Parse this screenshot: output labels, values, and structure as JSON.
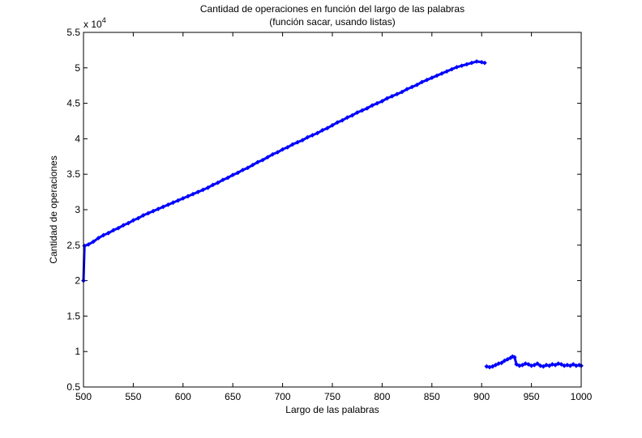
{
  "chart_data": {
    "type": "scatter",
    "title_line1": "Cantidad de operaciones en función del largo de las palabras",
    "title_line2": "(función sacar, usando listas)",
    "xlabel": "Largo de las palabras",
    "ylabel": "Cantidad de operaciones",
    "exponent_label": "x 10",
    "exponent_power": "4",
    "xlim": [
      500,
      1000
    ],
    "ylim": [
      0.5,
      5.5
    ],
    "x_ticks": [
      "500",
      "550",
      "600",
      "650",
      "700",
      "750",
      "800",
      "850",
      "900",
      "950",
      "1000"
    ],
    "y_ticks": [
      "0.5",
      "1",
      "1.5",
      "2",
      "2.5",
      "3",
      "3.5",
      "4",
      "4.5",
      "5",
      "5.5"
    ],
    "grid": false,
    "marker_color": "#0000ff",
    "series": [
      {
        "points": [
          [
            500,
            2.0
          ],
          [
            501,
            2.49
          ],
          [
            505,
            2.51
          ],
          [
            510,
            2.55
          ],
          [
            515,
            2.6
          ],
          [
            520,
            2.64
          ],
          [
            525,
            2.67
          ],
          [
            530,
            2.71
          ],
          [
            535,
            2.74
          ],
          [
            540,
            2.78
          ],
          [
            545,
            2.81
          ],
          [
            550,
            2.85
          ],
          [
            555,
            2.88
          ],
          [
            560,
            2.92
          ],
          [
            565,
            2.95
          ],
          [
            570,
            2.98
          ],
          [
            575,
            3.01
          ],
          [
            580,
            3.04
          ],
          [
            585,
            3.07
          ],
          [
            590,
            3.1
          ],
          [
            595,
            3.13
          ],
          [
            600,
            3.16
          ],
          [
            605,
            3.19
          ],
          [
            610,
            3.22
          ],
          [
            615,
            3.25
          ],
          [
            620,
            3.28
          ],
          [
            625,
            3.31
          ],
          [
            630,
            3.35
          ],
          [
            635,
            3.38
          ],
          [
            640,
            3.42
          ],
          [
            645,
            3.45
          ],
          [
            650,
            3.49
          ],
          [
            655,
            3.52
          ],
          [
            660,
            3.56
          ],
          [
            665,
            3.59
          ],
          [
            670,
            3.63
          ],
          [
            675,
            3.67
          ],
          [
            680,
            3.7
          ],
          [
            685,
            3.74
          ],
          [
            690,
            3.78
          ],
          [
            695,
            3.81
          ],
          [
            700,
            3.85
          ],
          [
            705,
            3.88
          ],
          [
            710,
            3.92
          ],
          [
            715,
            3.95
          ],
          [
            720,
            3.98
          ],
          [
            725,
            4.02
          ],
          [
            730,
            4.05
          ],
          [
            735,
            4.08
          ],
          [
            740,
            4.12
          ],
          [
            745,
            4.15
          ],
          [
            750,
            4.19
          ],
          [
            755,
            4.23
          ],
          [
            760,
            4.26
          ],
          [
            765,
            4.3
          ],
          [
            770,
            4.33
          ],
          [
            775,
            4.37
          ],
          [
            780,
            4.4
          ],
          [
            785,
            4.43
          ],
          [
            790,
            4.47
          ],
          [
            795,
            4.5
          ],
          [
            800,
            4.53
          ],
          [
            805,
            4.57
          ],
          [
            810,
            4.6
          ],
          [
            815,
            4.63
          ],
          [
            820,
            4.66
          ],
          [
            825,
            4.7
          ],
          [
            830,
            4.73
          ],
          [
            835,
            4.76
          ],
          [
            840,
            4.8
          ],
          [
            845,
            4.83
          ],
          [
            850,
            4.86
          ],
          [
            855,
            4.89
          ],
          [
            860,
            4.92
          ],
          [
            865,
            4.95
          ],
          [
            870,
            4.98
          ],
          [
            875,
            5.01
          ],
          [
            880,
            5.03
          ],
          [
            885,
            5.05
          ],
          [
            890,
            5.07
          ],
          [
            895,
            5.09
          ],
          [
            900,
            5.08
          ],
          [
            903,
            5.07
          ]
        ]
      },
      {
        "points": [
          [
            905,
            0.79
          ],
          [
            908,
            0.78
          ],
          [
            911,
            0.79
          ],
          [
            914,
            0.81
          ],
          [
            917,
            0.83
          ],
          [
            920,
            0.84
          ],
          [
            923,
            0.87
          ],
          [
            926,
            0.89
          ],
          [
            929,
            0.91
          ],
          [
            931,
            0.93
          ],
          [
            933,
            0.92
          ],
          [
            935,
            0.82
          ],
          [
            938,
            0.8
          ],
          [
            941,
            0.81
          ],
          [
            944,
            0.83
          ],
          [
            947,
            0.82
          ],
          [
            950,
            0.8
          ],
          [
            953,
            0.81
          ],
          [
            956,
            0.83
          ],
          [
            959,
            0.8
          ],
          [
            962,
            0.79
          ],
          [
            965,
            0.81
          ],
          [
            968,
            0.8
          ],
          [
            971,
            0.82
          ],
          [
            974,
            0.81
          ],
          [
            977,
            0.83
          ],
          [
            980,
            0.82
          ],
          [
            983,
            0.8
          ],
          [
            986,
            0.81
          ],
          [
            989,
            0.8
          ],
          [
            992,
            0.82
          ],
          [
            995,
            0.8
          ],
          [
            998,
            0.81
          ],
          [
            1000,
            0.8
          ]
        ]
      }
    ]
  }
}
